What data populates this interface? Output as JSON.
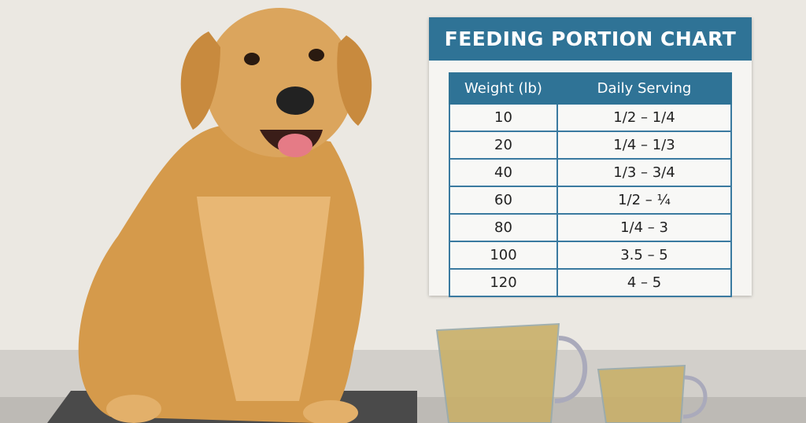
{
  "chart": {
    "title": "FEEDING PORTION CHART",
    "headers": [
      "Weight (lb)",
      "Daily Serving"
    ],
    "rows": [
      [
        10,
        "1/2 – 1/4"
      ],
      [
        20,
        "1/4 – 1/3"
      ],
      [
        40,
        "1/3 – 3/4"
      ],
      [
        60,
        "1/2 – ¼"
      ],
      [
        80,
        "1/4 – 3"
      ],
      [
        100,
        "3.5 – 5"
      ],
      [
        120,
        "4 – 5"
      ]
    ]
  }
}
